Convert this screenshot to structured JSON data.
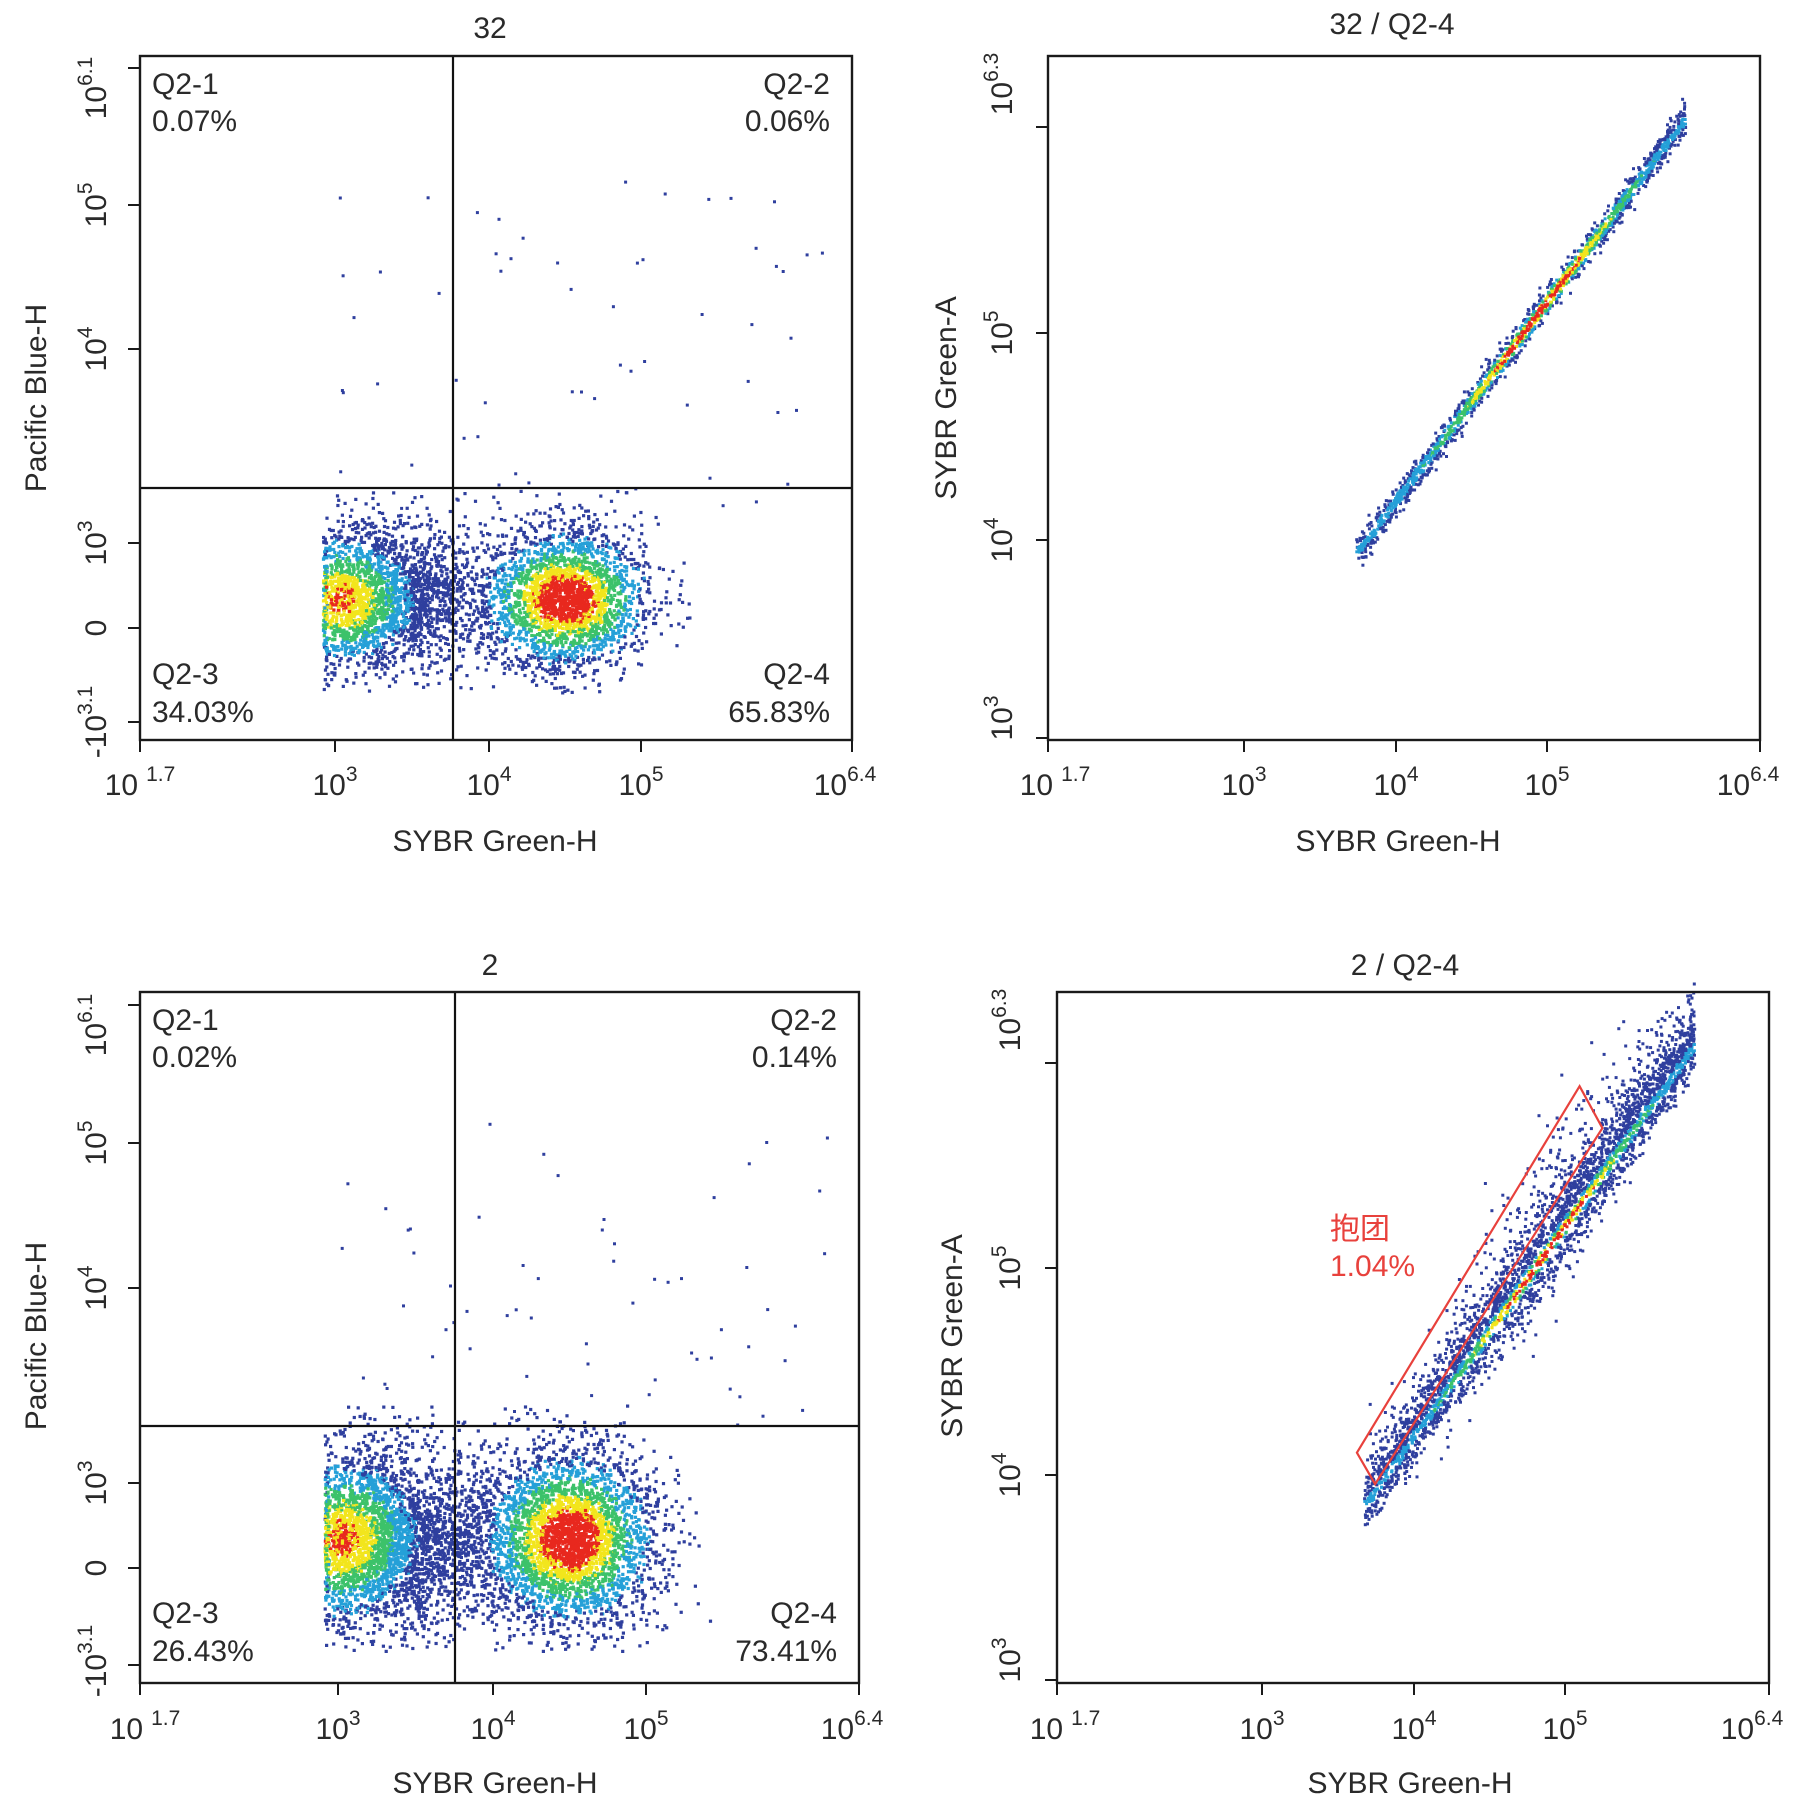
{
  "colors": {
    "density_low": "#2f3f9e",
    "density_mid_low": "#25a0d8",
    "density_mid": "#3cc26a",
    "density_mid_high": "#f2e51d",
    "density_high": "#e8281e",
    "gate": "#e8413c",
    "quadrant_line": "#111111"
  },
  "chart_data": [
    {
      "type": "scatter",
      "title": "32",
      "xlabel": "SYBR Green-H",
      "ylabel": "Pacific Blue-H",
      "x_scale": "log",
      "y_scale": "biexponential",
      "x_ticks": [
        {
          "base": "10",
          "exp": "1.7"
        },
        {
          "base": "10",
          "exp": "3"
        },
        {
          "base": "10",
          "exp": "4"
        },
        {
          "base": "10",
          "exp": "5"
        },
        {
          "base": "10",
          "exp": "6.4"
        }
      ],
      "y_ticks": [
        {
          "base": "-10",
          "exp": "3.1"
        },
        {
          "base": "0",
          "exp": ""
        },
        {
          "base": "10",
          "exp": "3"
        },
        {
          "base": "10",
          "exp": "4"
        },
        {
          "base": "10",
          "exp": "5"
        },
        {
          "base": "10",
          "exp": "6.1"
        }
      ],
      "xlim": [
        "10^1.7",
        "10^6.4"
      ],
      "ylim": [
        "-10^3.1",
        "10^6.1"
      ],
      "quadrant_gate": {
        "x_threshold_log10": 3.72,
        "y_threshold_log10": 3.3
      },
      "quadrants": [
        {
          "name": "Q2-1",
          "percent": "0.07%",
          "position": "top-left"
        },
        {
          "name": "Q2-2",
          "percent": "0.06%",
          "position": "top-right"
        },
        {
          "name": "Q2-3",
          "percent": "34.03%",
          "position": "bottom-left"
        },
        {
          "name": "Q2-4",
          "percent": "65.83%",
          "position": "bottom-right"
        }
      ],
      "populations": [
        {
          "x_log10_center": 3.0,
          "x_log10_sd": 0.18,
          "y_center": 0,
          "density": "high"
        },
        {
          "x_log10_center": 4.5,
          "x_log10_sd": 0.18,
          "y_center": 0,
          "density": "high"
        }
      ]
    },
    {
      "type": "scatter",
      "title": "32 / Q2-4",
      "xlabel": "SYBR Green-H",
      "ylabel": "SYBR Green-A",
      "x_scale": "log",
      "y_scale": "log",
      "x_ticks": [
        {
          "base": "10",
          "exp": "1.7"
        },
        {
          "base": "10",
          "exp": "3"
        },
        {
          "base": "10",
          "exp": "4"
        },
        {
          "base": "10",
          "exp": "5"
        },
        {
          "base": "10",
          "exp": "6.4"
        }
      ],
      "y_ticks": [
        {
          "base": "10",
          "exp": "3"
        },
        {
          "base": "10",
          "exp": "4"
        },
        {
          "base": "10",
          "exp": "5"
        },
        {
          "base": "10",
          "exp": "6.3"
        }
      ],
      "xlim": [
        "10^1.7",
        "10^6.4"
      ],
      "ylim": [
        "10^3",
        "10^6.3"
      ],
      "populations": [
        {
          "x_log10_range": [
            3.72,
            5.9
          ],
          "y_log10_range": [
            3.9,
            6.0
          ],
          "shape": "diagonal"
        }
      ]
    },
    {
      "type": "scatter",
      "title": "2",
      "xlabel": "SYBR Green-H",
      "ylabel": "Pacific Blue-H",
      "x_scale": "log",
      "y_scale": "biexponential",
      "x_ticks": [
        {
          "base": "10",
          "exp": "1.7"
        },
        {
          "base": "10",
          "exp": "3"
        },
        {
          "base": "10",
          "exp": "4"
        },
        {
          "base": "10",
          "exp": "5"
        },
        {
          "base": "10",
          "exp": "6.4"
        }
      ],
      "y_ticks": [
        {
          "base": "-10",
          "exp": "3.1"
        },
        {
          "base": "0",
          "exp": ""
        },
        {
          "base": "10",
          "exp": "3"
        },
        {
          "base": "10",
          "exp": "4"
        },
        {
          "base": "10",
          "exp": "5"
        },
        {
          "base": "10",
          "exp": "6.1"
        }
      ],
      "xlim": [
        "10^1.7",
        "10^6.4"
      ],
      "ylim": [
        "-10^3.1",
        "10^6.1"
      ],
      "quadrant_gate": {
        "x_threshold_log10": 3.72,
        "y_threshold_log10": 3.3
      },
      "quadrants": [
        {
          "name": "Q2-1",
          "percent": "0.02%",
          "position": "top-left"
        },
        {
          "name": "Q2-2",
          "percent": "0.14%",
          "position": "top-right"
        },
        {
          "name": "Q2-3",
          "percent": "26.43%",
          "position": "bottom-left"
        },
        {
          "name": "Q2-4",
          "percent": "73.41%",
          "position": "bottom-right"
        }
      ],
      "populations": [
        {
          "x_log10_center": 3.0,
          "x_log10_sd": 0.2,
          "y_center": 0,
          "density": "medium"
        },
        {
          "x_log10_center": 4.5,
          "x_log10_sd": 0.2,
          "y_center": 0,
          "density": "high"
        }
      ]
    },
    {
      "type": "scatter",
      "title": "2 / Q2-4",
      "xlabel": "SYBR Green-H",
      "ylabel": "SYBR Green-A",
      "x_scale": "log",
      "y_scale": "log",
      "x_ticks": [
        {
          "base": "10",
          "exp": "1.7"
        },
        {
          "base": "10",
          "exp": "3"
        },
        {
          "base": "10",
          "exp": "4"
        },
        {
          "base": "10",
          "exp": "5"
        },
        {
          "base": "10",
          "exp": "6.4"
        }
      ],
      "y_ticks": [
        {
          "base": "10",
          "exp": "3"
        },
        {
          "base": "10",
          "exp": "4"
        },
        {
          "base": "10",
          "exp": "5"
        },
        {
          "base": "10",
          "exp": "6.3"
        }
      ],
      "xlim": [
        "10^1.7",
        "10^6.4"
      ],
      "ylim": [
        "10^3",
        "10^6.3"
      ],
      "gate": {
        "name": "抱团",
        "percent": "1.04%",
        "shape": "polygon",
        "vertices_log10": [
          [
            3.68,
            4.1
          ],
          [
            5.15,
            5.85
          ],
          [
            5.3,
            5.65
          ],
          [
            3.8,
            3.95
          ]
        ]
      },
      "populations": [
        {
          "x_log10_range": [
            3.72,
            5.9
          ],
          "y_log10_range": [
            3.85,
            6.05
          ],
          "shape": "diagonal"
        }
      ]
    }
  ]
}
